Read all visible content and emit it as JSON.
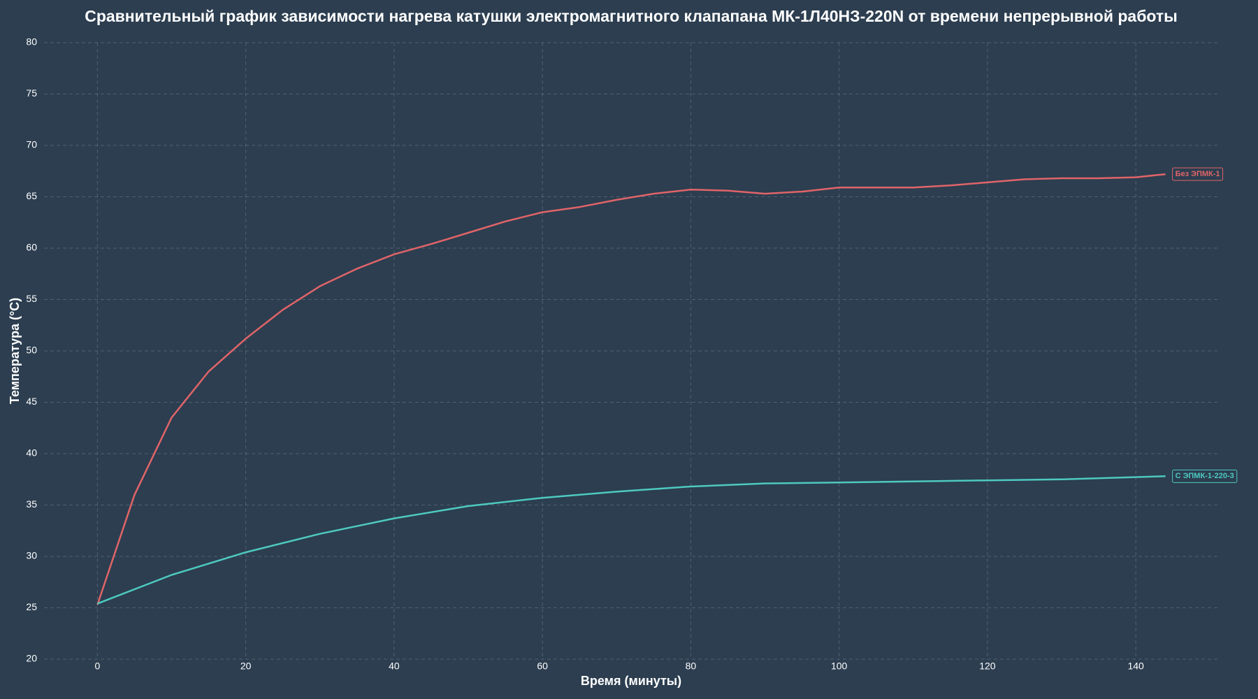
{
  "chart_data": {
    "type": "line",
    "title": "Сравнительный график зависимости нагрева катушки электромагнитного клапапана МК-1Л40НЗ-220N от времени непрерывной работы",
    "x_label": "Время (минуты)",
    "y_label": "Температура (°C)",
    "xlim": [
      -7.2,
      151.2
    ],
    "xticks": [
      0,
      20,
      40,
      60,
      80,
      100,
      120,
      140
    ],
    "ylim": [
      20,
      80
    ],
    "yticks": [
      20,
      25,
      30,
      35,
      40,
      45,
      50,
      55,
      60,
      65,
      70,
      75,
      80
    ],
    "grid": true,
    "series": [
      {
        "name": "Без ЭПМК-1",
        "color": "#e06468",
        "x": [
          0,
          5,
          10,
          15,
          20,
          25,
          30,
          35,
          40,
          45,
          50,
          55,
          60,
          65,
          70,
          75,
          80,
          85,
          90,
          95,
          100,
          105,
          110,
          115,
          120,
          125,
          130,
          135,
          140,
          144
        ],
        "values": [
          25.3,
          36,
          43.5,
          48,
          51.2,
          54,
          56.3,
          58,
          59.4,
          60.4,
          61.5,
          62.6,
          63.5,
          64,
          64.7,
          65.3,
          65.7,
          65.6,
          65.3,
          65.5,
          65.9,
          65.9,
          65.9,
          66.1,
          66.4,
          66.7,
          66.8,
          66.8,
          66.9,
          67.2
        ]
      },
      {
        "name": "С ЭПМК-1-220-3",
        "color": "#4ec9c0",
        "x": [
          0,
          10,
          20,
          30,
          40,
          50,
          60,
          70,
          80,
          90,
          100,
          110,
          120,
          130,
          144
        ],
        "values": [
          25.4,
          28.2,
          30.4,
          32.2,
          33.7,
          34.9,
          35.7,
          36.3,
          36.8,
          37.1,
          37.2,
          37.3,
          37.4,
          37.5,
          37.8
        ]
      }
    ]
  }
}
